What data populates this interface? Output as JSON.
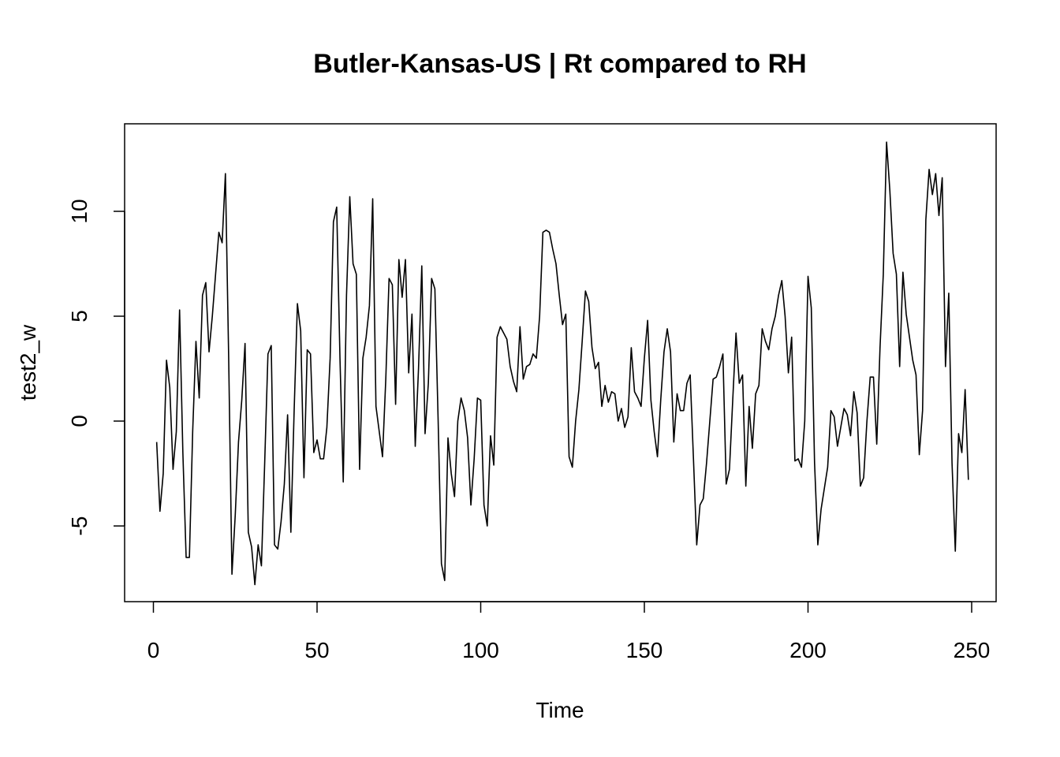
{
  "chart_data": {
    "type": "line",
    "title": "Butler-Kansas-US | Rt compared to RH",
    "xlabel": "Time",
    "ylabel": "test2_w",
    "xlim": [
      1,
      248
    ],
    "ylim": [
      -8,
      13.5
    ],
    "x_ticks": [
      0,
      50,
      100,
      150,
      200,
      250
    ],
    "y_ticks": [
      -5,
      0,
      5,
      10
    ],
    "x_tick_labels": [
      "0",
      "50",
      "100",
      "150",
      "200",
      "250"
    ],
    "y_tick_labels": [
      "-5",
      "0",
      "5",
      "10"
    ],
    "grid": false,
    "legend": "none",
    "series": [
      {
        "color": "#000000",
        "x_start": 1,
        "values": [
          -1.0,
          -4.3,
          -2.5,
          2.9,
          1.6,
          -2.3,
          -0.5,
          5.3,
          -1.5,
          -6.5,
          -6.5,
          -0.5,
          3.8,
          1.1,
          6.0,
          6.6,
          3.3,
          5.0,
          7.0,
          9.0,
          8.5,
          11.8,
          3.0,
          -7.3,
          -4.5,
          -1.0,
          1.0,
          3.7,
          -5.3,
          -6.0,
          -7.8,
          -5.9,
          -6.9,
          -2.0,
          3.2,
          3.6,
          -5.9,
          -6.1,
          -4.8,
          -3.0,
          0.3,
          -5.3,
          0.5,
          5.6,
          4.3,
          -2.7,
          3.4,
          3.2,
          -1.5,
          -0.9,
          -1.8,
          -1.8,
          -0.3,
          3.0,
          9.5,
          10.2,
          3.0,
          -2.9,
          6.0,
          10.7,
          7.5,
          7.0,
          -2.3,
          3.0,
          4.0,
          5.5,
          10.6,
          0.7,
          -0.5,
          -1.7,
          2.0,
          6.8,
          6.5,
          0.8,
          7.7,
          5.9,
          7.7,
          2.3,
          5.1,
          -1.2,
          2.5,
          7.4,
          -0.6,
          1.8,
          6.8,
          6.3,
          0.0,
          -6.8,
          -7.6,
          -0.8,
          -2.5,
          -3.6,
          0.0,
          1.1,
          0.5,
          -0.8,
          -4.0,
          -1.8,
          1.1,
          1.0,
          -4.0,
          -5.0,
          -0.7,
          -2.1,
          4.0,
          4.5,
          4.2,
          3.9,
          2.6,
          1.9,
          1.4,
          4.5,
          2.0,
          2.6,
          2.7,
          3.2,
          3.0,
          5.0,
          9.0,
          9.1,
          9.0,
          8.2,
          7.5,
          6.0,
          4.6,
          5.1,
          -1.7,
          -2.2,
          0.0,
          1.5,
          3.8,
          6.2,
          5.7,
          3.5,
          2.5,
          2.8,
          0.7,
          1.7,
          0.9,
          1.4,
          1.3,
          0.0,
          0.6,
          -0.3,
          0.2,
          3.5,
          1.4,
          1.1,
          0.7,
          3.0,
          4.8,
          1.0,
          -0.5,
          -1.7,
          1.0,
          3.3,
          4.4,
          3.3,
          -1.0,
          1.3,
          0.5,
          0.5,
          1.8,
          2.2,
          -1.8,
          -5.9,
          -4.0,
          -3.7,
          -2.0,
          0.0,
          2.0,
          2.1,
          2.6,
          3.2,
          -3.0,
          -2.3,
          1.0,
          4.2,
          1.8,
          2.2,
          -3.1,
          0.7,
          -1.3,
          1.3,
          1.7,
          4.4,
          3.8,
          3.4,
          4.4,
          5.0,
          6.0,
          6.7,
          5.0,
          2.3,
          4.0,
          -1.9,
          -1.8,
          -2.2,
          0.0,
          6.9,
          5.4,
          -2.0,
          -5.9,
          -4.2,
          -3.2,
          -2.2,
          0.5,
          0.2,
          -1.2,
          -0.3,
          0.6,
          0.3,
          -0.7,
          1.4,
          0.4,
          -3.1,
          -2.7,
          0.0,
          2.1,
          2.1,
          -1.1,
          3.5,
          7.0,
          13.3,
          11.0,
          8.0,
          7.0,
          2.6,
          7.1,
          5.1,
          4.0,
          2.9,
          2.2,
          -1.6,
          0.5,
          9.6,
          12.0,
          10.8,
          11.8,
          9.8,
          11.6,
          2.6,
          6.1,
          -2.0,
          -6.2,
          -0.6,
          -1.5,
          1.5,
          -2.8
        ]
      }
    ]
  }
}
